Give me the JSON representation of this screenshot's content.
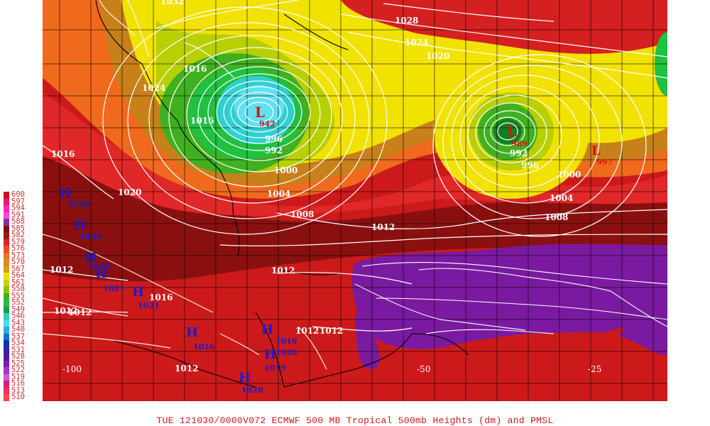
{
  "caption": {
    "text": "TUE 121030/0000V072  ECMWF  500 MB Tropical 500mb Heights (dm) and PMSL"
  },
  "colors": {
    "background": "#ffffff",
    "isobar": "#ffffff",
    "low_marker": "#dd1111",
    "high_marker": "#1a1acc",
    "grid": "#000000"
  },
  "legend": {
    "labels": [
      "600",
      "597",
      "594",
      "591",
      "588",
      "585",
      "582",
      "579",
      "576",
      "573",
      "570",
      "567",
      "564",
      "561",
      "558",
      "555",
      "552",
      "549",
      "546",
      "543",
      "540",
      "537",
      "534",
      "531",
      "528",
      "525",
      "522",
      "519",
      "516",
      "513",
      "510"
    ],
    "colors": [
      "#cc1010",
      "#dd1a7a",
      "#ff22aa",
      "#ff44dd",
      "#8a2aa0",
      "#7a1010",
      "#a01414",
      "#e02020",
      "#f04828",
      "#f07020",
      "#e08a10",
      "#d4a010",
      "#f0e000",
      "#c8d000",
      "#90c000",
      "#40b020",
      "#20c040",
      "#10a040",
      "#30d0c0",
      "#40e0f0",
      "#20b0e0",
      "#1070e0",
      "#1030c0",
      "#3020a0",
      "#5018a0",
      "#7a1abb",
      "#aa33cc",
      "#cc55dd",
      "#dd1a7a",
      "#ee3355",
      "#ff4444"
    ]
  },
  "lows": [
    {
      "symbol": "L",
      "value": "942"
    },
    {
      "symbol": "L",
      "value": "989"
    },
    {
      "symbol": "L",
      "value": "997"
    }
  ],
  "highs": [
    {
      "symbol": "H",
      "value": "1020"
    },
    {
      "symbol": "H",
      "value": "1020"
    },
    {
      "symbol": "H",
      "value": "1020"
    },
    {
      "symbol": "H",
      "value": "1021"
    },
    {
      "symbol": "H",
      "value": "1021"
    },
    {
      "symbol": "H",
      "value": "1016"
    },
    {
      "symbol": "H",
      "value": "1016"
    },
    {
      "symbol": "H",
      "value": "1020"
    },
    {
      "symbol": "H",
      "value": "1019"
    },
    {
      "symbol": "H",
      "value": "1028"
    }
  ],
  "isobar_labels": [
    "1032",
    "1028",
    "1024",
    "1020",
    "1016",
    "1012",
    "1008",
    "1004",
    "1000",
    "996",
    "992",
    "1016",
    "1020",
    "1024",
    "1012",
    "1012",
    "1012",
    "1012",
    "1012",
    "1012",
    "1008",
    "1004",
    "1000",
    "996",
    "992",
    "1016",
    "1012",
    "1016"
  ],
  "coordinates": [
    "-100",
    "-50",
    "-25"
  ]
}
